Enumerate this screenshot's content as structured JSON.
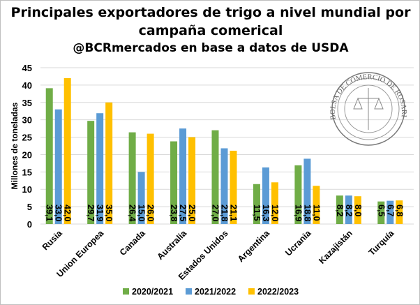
{
  "chart_data": {
    "type": "bar",
    "title_line1": "Principales exportadores de trigo a nivel mundial por",
    "title_line2": "campaña comerical",
    "subtitle": "@BCRmercados  en base a datos de USDA",
    "ylabel": "Millones de toneladas",
    "xlabel": "",
    "ylim": [
      0,
      45
    ],
    "yticks": [
      0,
      5,
      10,
      15,
      20,
      25,
      30,
      35,
      40,
      45
    ],
    "grid": true,
    "legend_position": "bottom",
    "categories": [
      "Rusia",
      "Union Europea",
      "Canada",
      "Australia",
      "Estados Unidos",
      "Argentina",
      "Ucrania",
      "Kazajistán",
      "Turquía"
    ],
    "series": [
      {
        "name": "2020/2021",
        "color": "#70ad47",
        "values": [
          39.1,
          29.7,
          26.4,
          23.8,
          27.0,
          11.5,
          16.9,
          8.2,
          6.5
        ],
        "labels": [
          "39,1",
          "29,7",
          "26,4",
          "23,8",
          "27,0",
          "11,5",
          "16,9",
          "8,2",
          "6,5"
        ]
      },
      {
        "name": "2021/2022",
        "color": "#5b9bd5",
        "values": [
          33.0,
          31.9,
          15.0,
          27.5,
          21.8,
          16.3,
          18.8,
          8.2,
          6.7
        ],
        "labels": [
          "33,0",
          "31,9",
          "15,0",
          "27,5",
          "21,8",
          "16,3",
          "18,8",
          "8,2",
          "6,7"
        ]
      },
      {
        "name": "2022/2023",
        "color": "#ffc000",
        "values": [
          42.0,
          35.0,
          26.0,
          25.0,
          21.1,
          12.0,
          11.0,
          8.0,
          6.8
        ],
        "labels": [
          "42,0",
          "35,0",
          "26,0",
          "25,0",
          "21,1",
          "12,0",
          "11,0",
          "8,0",
          "6,8"
        ]
      }
    ]
  },
  "seal": {
    "text": "BOLSA DE COMERCIO DE ROSARIO"
  }
}
